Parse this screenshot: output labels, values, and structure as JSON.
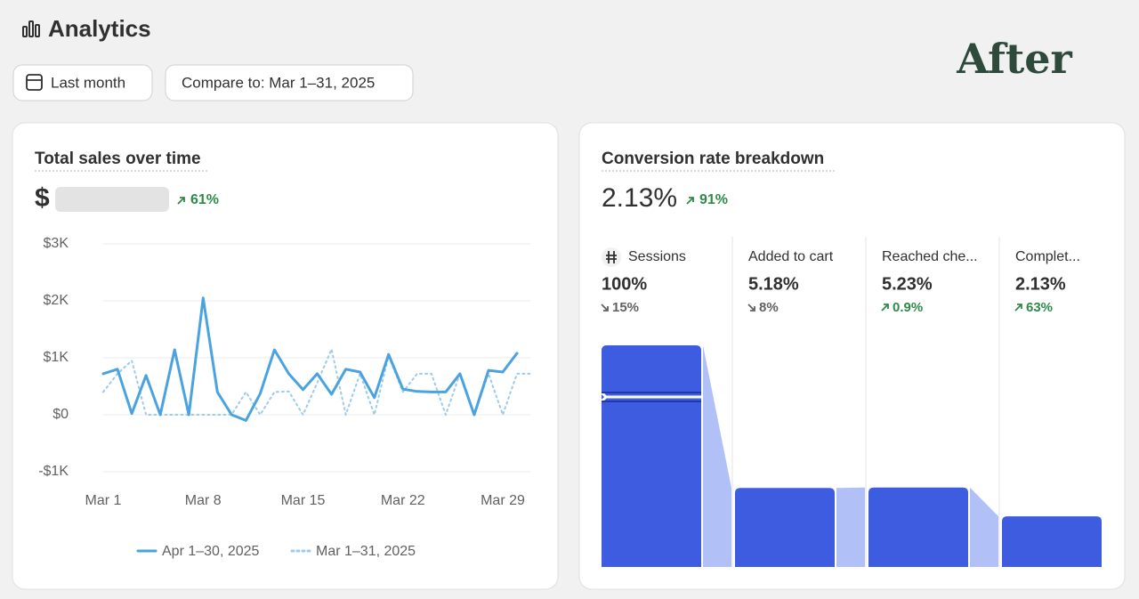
{
  "header": {
    "title": "Analytics",
    "buttons": [
      "Last month",
      "Compare to: Mar 1–31, 2025"
    ],
    "badge": "After"
  },
  "chart_data": [
    {
      "type": "line",
      "title": "Total sales over time",
      "summary_prefix": "$",
      "change": "61%",
      "change_direction": "up",
      "categories": [
        "Mar 1",
        null,
        null,
        null,
        null,
        null,
        null,
        "Mar 8",
        null,
        null,
        null,
        null,
        null,
        null,
        "Mar 15",
        null,
        null,
        null,
        null,
        null,
        null,
        "Mar 22",
        null,
        null,
        null,
        null,
        null,
        null,
        "Mar 29",
        null,
        null
      ],
      "series": [
        {
          "name": "Apr 1–30, 2025",
          "color": "#4aa3e0",
          "style": "solid",
          "values": [
            720,
            800,
            20,
            690,
            0,
            1140,
            0,
            2050,
            400,
            0,
            -100,
            370,
            1140,
            720,
            440,
            720,
            360,
            800,
            750,
            300,
            1060,
            450,
            410,
            400,
            400,
            720,
            0,
            780,
            750,
            1080,
            null
          ]
        },
        {
          "name": "Mar 1–31, 2025",
          "color": "#9ccbee",
          "style": "dotted",
          "values": [
            400,
            720,
            950,
            0,
            0,
            0,
            0,
            0,
            0,
            0,
            400,
            0,
            400,
            410,
            0,
            560,
            1150,
            0,
            720,
            0,
            1030,
            400,
            720,
            720,
            0,
            720,
            0,
            720,
            0,
            720,
            720
          ]
        }
      ],
      "ylim": [
        -1000,
        3000
      ],
      "yticks": [
        {
          "value": -1000,
          "label": "-$1K"
        },
        {
          "value": 0,
          "label": "$0"
        },
        {
          "value": 1000,
          "label": "$1K"
        },
        {
          "value": 2000,
          "label": "$2K"
        },
        {
          "value": 3000,
          "label": "$3K"
        }
      ],
      "grid": true
    },
    {
      "type": "funnel",
      "title": "Conversion rate breakdown",
      "summary": "2.13%",
      "change": "91%",
      "change_direction": "up",
      "categories": [
        "Sessions",
        "Added to cart",
        "Reached che...",
        "Complet..."
      ],
      "values": [
        100,
        5.18,
        5.23,
        2.13
      ],
      "value_labels": [
        "100%",
        "5.18%",
        "5.23%",
        "2.13%"
      ],
      "changes": [
        "15%",
        "8%",
        "0.9%",
        "63%"
      ],
      "change_directions": [
        "down",
        "down",
        "up",
        "up"
      ],
      "color": "#3e5ce0",
      "connector_color": "#a9b9f6"
    }
  ]
}
